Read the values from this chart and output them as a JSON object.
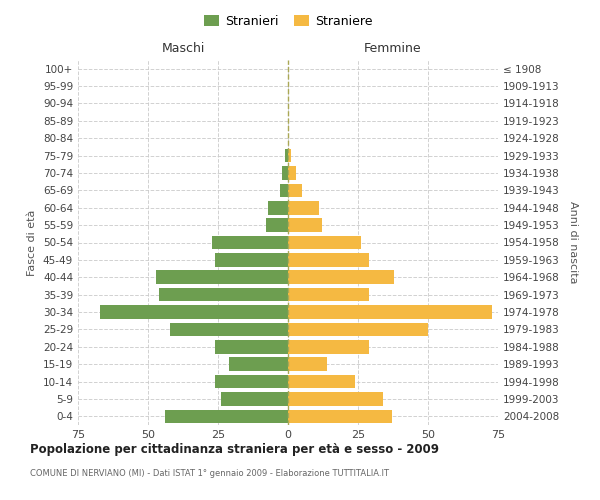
{
  "age_groups": [
    "0-4",
    "5-9",
    "10-14",
    "15-19",
    "20-24",
    "25-29",
    "30-34",
    "35-39",
    "40-44",
    "45-49",
    "50-54",
    "55-59",
    "60-64",
    "65-69",
    "70-74",
    "75-79",
    "80-84",
    "85-89",
    "90-94",
    "95-99",
    "100+"
  ],
  "birth_years": [
    "2004-2008",
    "1999-2003",
    "1994-1998",
    "1989-1993",
    "1984-1988",
    "1979-1983",
    "1974-1978",
    "1969-1973",
    "1964-1968",
    "1959-1963",
    "1954-1958",
    "1949-1953",
    "1944-1948",
    "1939-1943",
    "1934-1938",
    "1929-1933",
    "1924-1928",
    "1919-1923",
    "1914-1918",
    "1909-1913",
    "≤ 1908"
  ],
  "males": [
    44,
    24,
    26,
    21,
    26,
    42,
    67,
    46,
    47,
    26,
    27,
    8,
    7,
    3,
    2,
    1,
    0,
    0,
    0,
    0,
    0
  ],
  "females": [
    37,
    34,
    24,
    14,
    29,
    50,
    73,
    29,
    38,
    29,
    26,
    12,
    11,
    5,
    3,
    1,
    0,
    0,
    0,
    0,
    0
  ],
  "male_color": "#6d9e50",
  "female_color": "#f5b942",
  "background_color": "#ffffff",
  "grid_color": "#cccccc",
  "title": "Popolazione per cittadinanza straniera per età e sesso - 2009",
  "subtitle": "COMUNE DI NERVIANO (MI) - Dati ISTAT 1° gennaio 2009 - Elaborazione TUTTITALIA.IT",
  "left_label": "Maschi",
  "right_label": "Femmine",
  "ylabel_left": "Fasce di età",
  "ylabel_right": "Anni di nascita",
  "legend_males": "Stranieri",
  "legend_females": "Straniere",
  "xlim": 75
}
